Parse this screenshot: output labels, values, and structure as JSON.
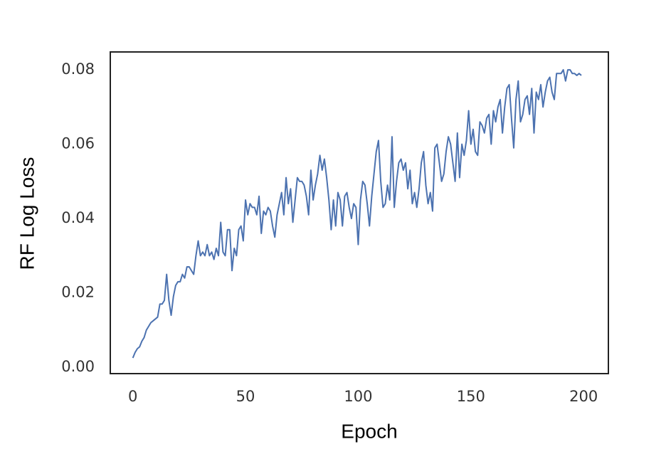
{
  "chart_data": {
    "type": "line",
    "x_label": "Epoch",
    "y_label": "RF Log Loss",
    "x": [
      0,
      1,
      2,
      3,
      4,
      5,
      6,
      7,
      8,
      9,
      10,
      11,
      12,
      13,
      14,
      15,
      16,
      17,
      18,
      19,
      20,
      21,
      22,
      23,
      24,
      25,
      26,
      27,
      28,
      29,
      30,
      31,
      32,
      33,
      34,
      35,
      36,
      37,
      38,
      39,
      40,
      41,
      42,
      43,
      44,
      45,
      46,
      47,
      48,
      49,
      50,
      51,
      52,
      53,
      54,
      55,
      56,
      57,
      58,
      59,
      60,
      61,
      62,
      63,
      64,
      65,
      66,
      67,
      68,
      69,
      70,
      71,
      72,
      73,
      74,
      75,
      76,
      77,
      78,
      79,
      80,
      81,
      82,
      83,
      84,
      85,
      86,
      87,
      88,
      89,
      90,
      91,
      92,
      93,
      94,
      95,
      96,
      97,
      98,
      99,
      100,
      101,
      102,
      103,
      104,
      105,
      106,
      107,
      108,
      109,
      110,
      111,
      112,
      113,
      114,
      115,
      116,
      117,
      118,
      119,
      120,
      121,
      122,
      123,
      124,
      125,
      126,
      127,
      128,
      129,
      130,
      131,
      132,
      133,
      134,
      135,
      136,
      137,
      138,
      139,
      140,
      141,
      142,
      143,
      144,
      145,
      146,
      147,
      148,
      149,
      150,
      151,
      152,
      153,
      154,
      155,
      156,
      157,
      158,
      159,
      160,
      161,
      162,
      163,
      164,
      165,
      166,
      167,
      168,
      169,
      170,
      171,
      172,
      173,
      174,
      175,
      176,
      177,
      178,
      179,
      180,
      181,
      182,
      183,
      184,
      185,
      186,
      187,
      188,
      189,
      190,
      191,
      192,
      193,
      194,
      195,
      196,
      197,
      198,
      199
    ],
    "series": [
      {
        "color": "#4c72b0",
        "values": [
          0.0025,
          0.004,
          0.005,
          0.0055,
          0.007,
          0.008,
          0.01,
          0.011,
          0.012,
          0.0125,
          0.013,
          0.0135,
          0.017,
          0.017,
          0.018,
          0.025,
          0.018,
          0.014,
          0.019,
          0.022,
          0.023,
          0.023,
          0.025,
          0.024,
          0.027,
          0.027,
          0.026,
          0.025,
          0.03,
          0.034,
          0.03,
          0.031,
          0.03,
          0.033,
          0.03,
          0.031,
          0.029,
          0.032,
          0.03,
          0.039,
          0.031,
          0.03,
          0.037,
          0.037,
          0.026,
          0.032,
          0.03,
          0.037,
          0.038,
          0.034,
          0.045,
          0.041,
          0.044,
          0.043,
          0.043,
          0.041,
          0.046,
          0.036,
          0.042,
          0.041,
          0.043,
          0.042,
          0.038,
          0.035,
          0.041,
          0.044,
          0.047,
          0.041,
          0.051,
          0.044,
          0.048,
          0.039,
          0.045,
          0.051,
          0.05,
          0.05,
          0.049,
          0.046,
          0.041,
          0.053,
          0.045,
          0.049,
          0.052,
          0.057,
          0.053,
          0.056,
          0.051,
          0.045,
          0.037,
          0.045,
          0.038,
          0.047,
          0.045,
          0.038,
          0.046,
          0.047,
          0.043,
          0.04,
          0.044,
          0.043,
          0.033,
          0.045,
          0.05,
          0.049,
          0.044,
          0.038,
          0.046,
          0.052,
          0.058,
          0.061,
          0.05,
          0.043,
          0.044,
          0.049,
          0.045,
          0.062,
          0.043,
          0.05,
          0.055,
          0.056,
          0.053,
          0.055,
          0.048,
          0.053,
          0.044,
          0.047,
          0.043,
          0.048,
          0.055,
          0.058,
          0.049,
          0.044,
          0.047,
          0.042,
          0.059,
          0.06,
          0.055,
          0.05,
          0.052,
          0.058,
          0.062,
          0.06,
          0.055,
          0.05,
          0.063,
          0.051,
          0.06,
          0.057,
          0.061,
          0.069,
          0.06,
          0.064,
          0.058,
          0.057,
          0.066,
          0.065,
          0.063,
          0.067,
          0.068,
          0.06,
          0.069,
          0.066,
          0.07,
          0.072,
          0.063,
          0.07,
          0.075,
          0.076,
          0.067,
          0.059,
          0.072,
          0.077,
          0.066,
          0.068,
          0.072,
          0.073,
          0.068,
          0.075,
          0.063,
          0.074,
          0.072,
          0.076,
          0.07,
          0.074,
          0.077,
          0.078,
          0.074,
          0.072,
          0.079,
          0.079,
          0.079,
          0.08,
          0.077,
          0.08,
          0.08,
          0.079,
          0.079,
          0.0785,
          0.079,
          0.0785
        ]
      }
    ],
    "xlim": [
      -10,
      211
    ],
    "xticks": [
      0,
      50,
      100,
      150,
      200
    ],
    "ylim": [
      -0.0017,
      0.0848
    ],
    "yticks": [
      {
        "value": 0,
        "label": "0.00"
      },
      {
        "value": 0.02,
        "label": "0.02"
      },
      {
        "value": 0.04,
        "label": "0.04"
      },
      {
        "value": 0.06,
        "label": "0.06"
      },
      {
        "value": 0.08,
        "label": "0.08"
      }
    ],
    "grid": false
  }
}
